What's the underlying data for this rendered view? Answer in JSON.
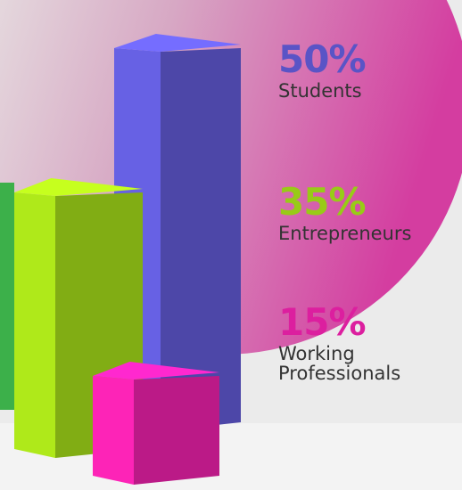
{
  "chart_data": {
    "type": "bar",
    "categories": [
      "Students",
      "Entrepreneurs",
      "Working Professionals"
    ],
    "values": [
      50,
      35,
      15
    ],
    "value_labels": [
      "50%",
      "35%",
      "15%"
    ],
    "colors": [
      "#5a54c6",
      "#98cb17",
      "#dc1f9f"
    ]
  }
}
